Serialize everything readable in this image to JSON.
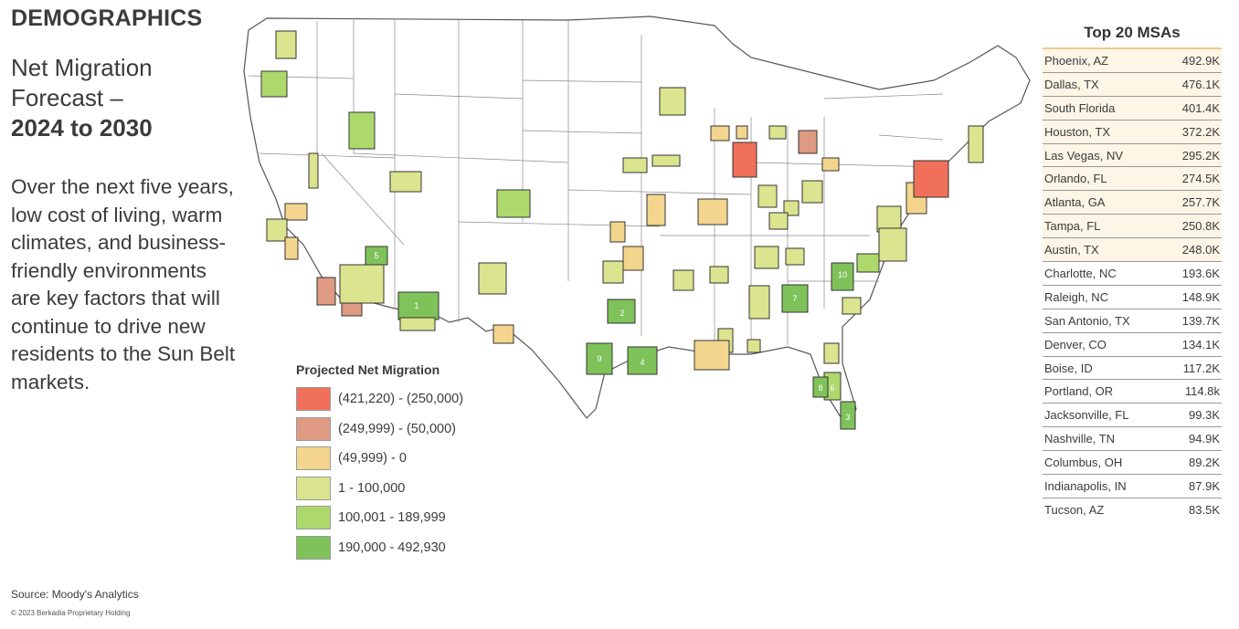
{
  "header": {
    "section_title": "DEMOGRAPHICS",
    "subtitle_line1": "Net Migration",
    "subtitle_line2": "Forecast –",
    "subtitle_bold": "2024 to 2030",
    "description": "Over the next five years, low cost of living, warm climates, and business-friendly environments are key factors that will continue to drive new residents to the Sun Belt markets."
  },
  "legend": {
    "title": "Projected Net Migration",
    "items": [
      {
        "label": "(421,220) - (250,000)",
        "color": "#f0705a"
      },
      {
        "label": "(249,999) - (50,000)",
        "color": "#de9a82"
      },
      {
        "label": "(49,999) - 0",
        "color": "#f4d58e"
      },
      {
        "label": "1 - 100,000",
        "color": "#dbe48e"
      },
      {
        "label": "100,001 - 189,999",
        "color": "#add96c"
      },
      {
        "label": "190,000 - 492,930",
        "color": "#7fc25a"
      }
    ]
  },
  "msa_table": {
    "title": "Top 20 MSAs",
    "rows": [
      {
        "name": "Phoenix, AZ",
        "value": "492.9K"
      },
      {
        "name": "Dallas, TX",
        "value": "476.1K"
      },
      {
        "name": "South Florida",
        "value": "401.4K"
      },
      {
        "name": "Houston, TX",
        "value": "372.2K"
      },
      {
        "name": "Las Vegas, NV",
        "value": "295.2K"
      },
      {
        "name": "Orlando, FL",
        "value": "274.5K"
      },
      {
        "name": "Atlanta, GA",
        "value": "257.7K"
      },
      {
        "name": "Tampa, FL",
        "value": "250.8K"
      },
      {
        "name": "Austin, TX",
        "value": "248.0K"
      },
      {
        "name": "Charlotte, NC",
        "value": "193.6K"
      },
      {
        "name": "Raleigh, NC",
        "value": "148.9K"
      },
      {
        "name": "San Antonio, TX",
        "value": "139.7K"
      },
      {
        "name": "Denver, CO",
        "value": "134.1K"
      },
      {
        "name": "Boise, ID",
        "value": "117.2K"
      },
      {
        "name": "Portland, OR",
        "value": "114.8k"
      },
      {
        "name": "Jacksonville, FL",
        "value": "99.3K"
      },
      {
        "name": "Nashville, TN",
        "value": "94.9K"
      },
      {
        "name": "Columbus, OH",
        "value": "89.2K"
      },
      {
        "name": "Indianapolis, IN",
        "value": "87.9K"
      },
      {
        "name": "Tucson, AZ",
        "value": "83.5K"
      }
    ]
  },
  "map": {
    "ranked_labels": [
      "1",
      "2",
      "3",
      "4",
      "5",
      "6",
      "7",
      "8",
      "9",
      "10"
    ]
  },
  "footer": {
    "source": "Source: Moody's Analytics",
    "copyright": "© 2023 Berkadia Proprietary Holding"
  }
}
